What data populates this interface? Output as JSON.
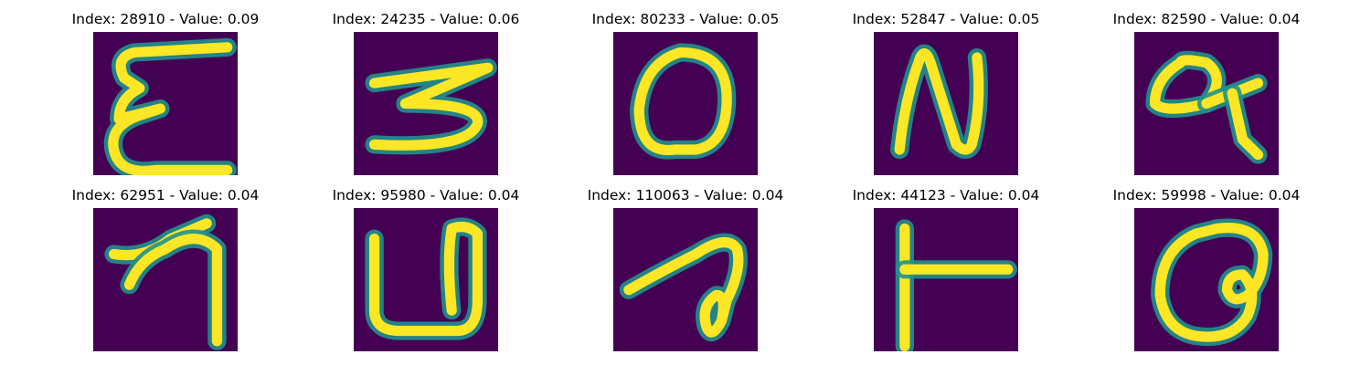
{
  "chart_data": {
    "type": "image-grid",
    "title": "",
    "rows": 2,
    "cols": 5,
    "colormap": {
      "background": "#440154",
      "mid": "#21918c",
      "high": "#fde725"
    },
    "panels": [
      {
        "title": "Index: 28910 - Value: 0.09",
        "index": 28910,
        "value": 0.09,
        "glyph": "epsilon"
      },
      {
        "title": "Index: 24235 - Value: 0.06",
        "index": 24235,
        "value": 0.06,
        "glyph": "z-stroke"
      },
      {
        "title": "Index: 80233 - Value: 0.05",
        "index": 80233,
        "value": 0.05,
        "glyph": "o"
      },
      {
        "title": "Index: 52847 - Value: 0.05",
        "index": 52847,
        "value": 0.05,
        "glyph": "n"
      },
      {
        "title": "Index: 82590 - Value: 0.04",
        "index": 82590,
        "value": 0.04,
        "glyph": "q-loop"
      },
      {
        "title": "Index: 62951 - Value: 0.04",
        "index": 62951,
        "value": 0.04,
        "glyph": "arrow"
      },
      {
        "title": "Index: 95980 - Value: 0.04",
        "index": 95980,
        "value": 0.04,
        "glyph": "u"
      },
      {
        "title": "Index: 110063 - Value: 0.04",
        "index": 110063,
        "value": 0.04,
        "glyph": "hook"
      },
      {
        "title": "Index: 44123 - Value: 0.04",
        "index": 44123,
        "value": 0.04,
        "glyph": "t-bar"
      },
      {
        "title": "Index: 59998 - Value: 0.04",
        "index": 59998,
        "value": 0.04,
        "glyph": "a-loop"
      }
    ]
  }
}
